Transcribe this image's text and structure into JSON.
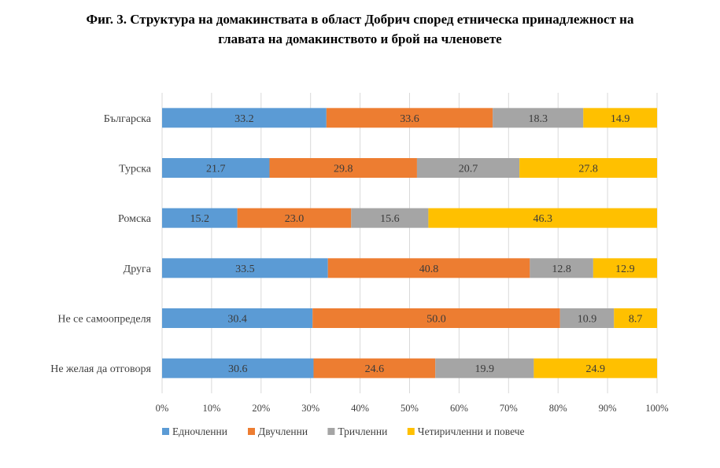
{
  "title_lines": [
    "Фиг. 3. Структура на домакинствата в област Добрич според етническа принадлежност на",
    "главата на домакинството и брой на членовете"
  ],
  "chart_data": {
    "type": "bar",
    "orientation": "horizontal",
    "stacked": true,
    "percent_stacked": true,
    "title": "Фиг. 3. Структура на домакинствата в област Добрич според етническа принадлежност на главата на домакинството и брой на членовете",
    "categories": [
      "Българска",
      "Турска",
      "Ромска",
      "Друга",
      "Не се самоопределя",
      "Не желая да отговоря"
    ],
    "series": [
      {
        "name": "Едночленни",
        "color": "#5B9BD5",
        "values": [
          33.2,
          21.7,
          15.2,
          33.5,
          30.4,
          30.6
        ]
      },
      {
        "name": "Двучленни",
        "color": "#ED7D31",
        "values": [
          33.6,
          29.8,
          23.0,
          40.8,
          50.0,
          24.6
        ]
      },
      {
        "name": "Тричленни",
        "color": "#A5A5A5",
        "values": [
          18.3,
          20.7,
          15.6,
          12.8,
          10.9,
          19.9
        ]
      },
      {
        "name": "Четиричленни  и повече",
        "color": "#FFC000",
        "values": [
          14.9,
          27.8,
          46.3,
          12.9,
          8.7,
          24.9
        ]
      }
    ],
    "x_ticks": [
      "0%",
      "10%",
      "20%",
      "30%",
      "40%",
      "50%",
      "60%",
      "70%",
      "80%",
      "90%",
      "100%"
    ],
    "xlim": [
      0,
      100
    ],
    "xlabel": "",
    "ylabel": "",
    "grid": true,
    "legend_position": "bottom"
  }
}
